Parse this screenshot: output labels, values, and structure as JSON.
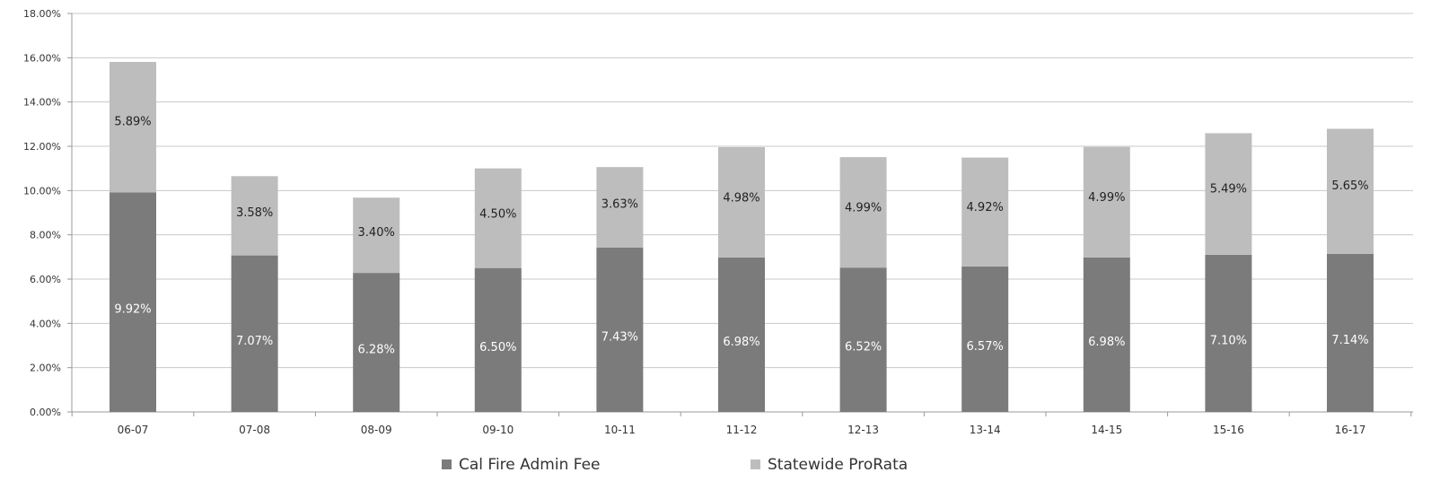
{
  "chart_data": {
    "type": "bar",
    "stacked": true,
    "title": "",
    "xlabel": "",
    "ylabel": "",
    "categories": [
      "06-07",
      "07-08",
      "08-09",
      "09-10",
      "10-11",
      "11-12",
      "12-13",
      "13-14",
      "14-15",
      "15-16",
      "16-17"
    ],
    "series": [
      {
        "name": "Cal Fire Admin Fee",
        "color": "#7b7b7b",
        "values": [
          9.92,
          7.07,
          6.28,
          6.5,
          7.43,
          6.98,
          6.52,
          6.57,
          6.98,
          7.1,
          7.14
        ],
        "labels": [
          "9.92%",
          "7.07%",
          "6.28%",
          "6.50%",
          "7.43%",
          "6.98%",
          "6.52%",
          "6.57%",
          "6.98%",
          "7.10%",
          "7.14%"
        ],
        "label_color": "#ffffff"
      },
      {
        "name": "Statewide ProRata",
        "color": "#bdbdbd",
        "values": [
          5.89,
          3.58,
          3.4,
          4.5,
          3.63,
          4.98,
          4.99,
          4.92,
          4.99,
          5.49,
          5.65
        ],
        "labels": [
          "5.89%",
          "3.58%",
          "3.40%",
          "4.50%",
          "3.63%",
          "4.98%",
          "4.99%",
          "4.92%",
          "4.99%",
          "5.49%",
          "5.65%"
        ],
        "label_color": "#222222"
      }
    ],
    "ylim": [
      0,
      18
    ],
    "yticks": [
      0,
      2,
      4,
      6,
      8,
      10,
      12,
      14,
      16,
      18
    ],
    "ytick_labels": [
      "0.00%",
      "2.00%",
      "4.00%",
      "6.00%",
      "8.00%",
      "10.00%",
      "12.00%",
      "14.00%",
      "16.00%",
      "18.00%"
    ],
    "grid": true,
    "gridline_color": "#c8c8c8",
    "legend_position": "bottom"
  }
}
